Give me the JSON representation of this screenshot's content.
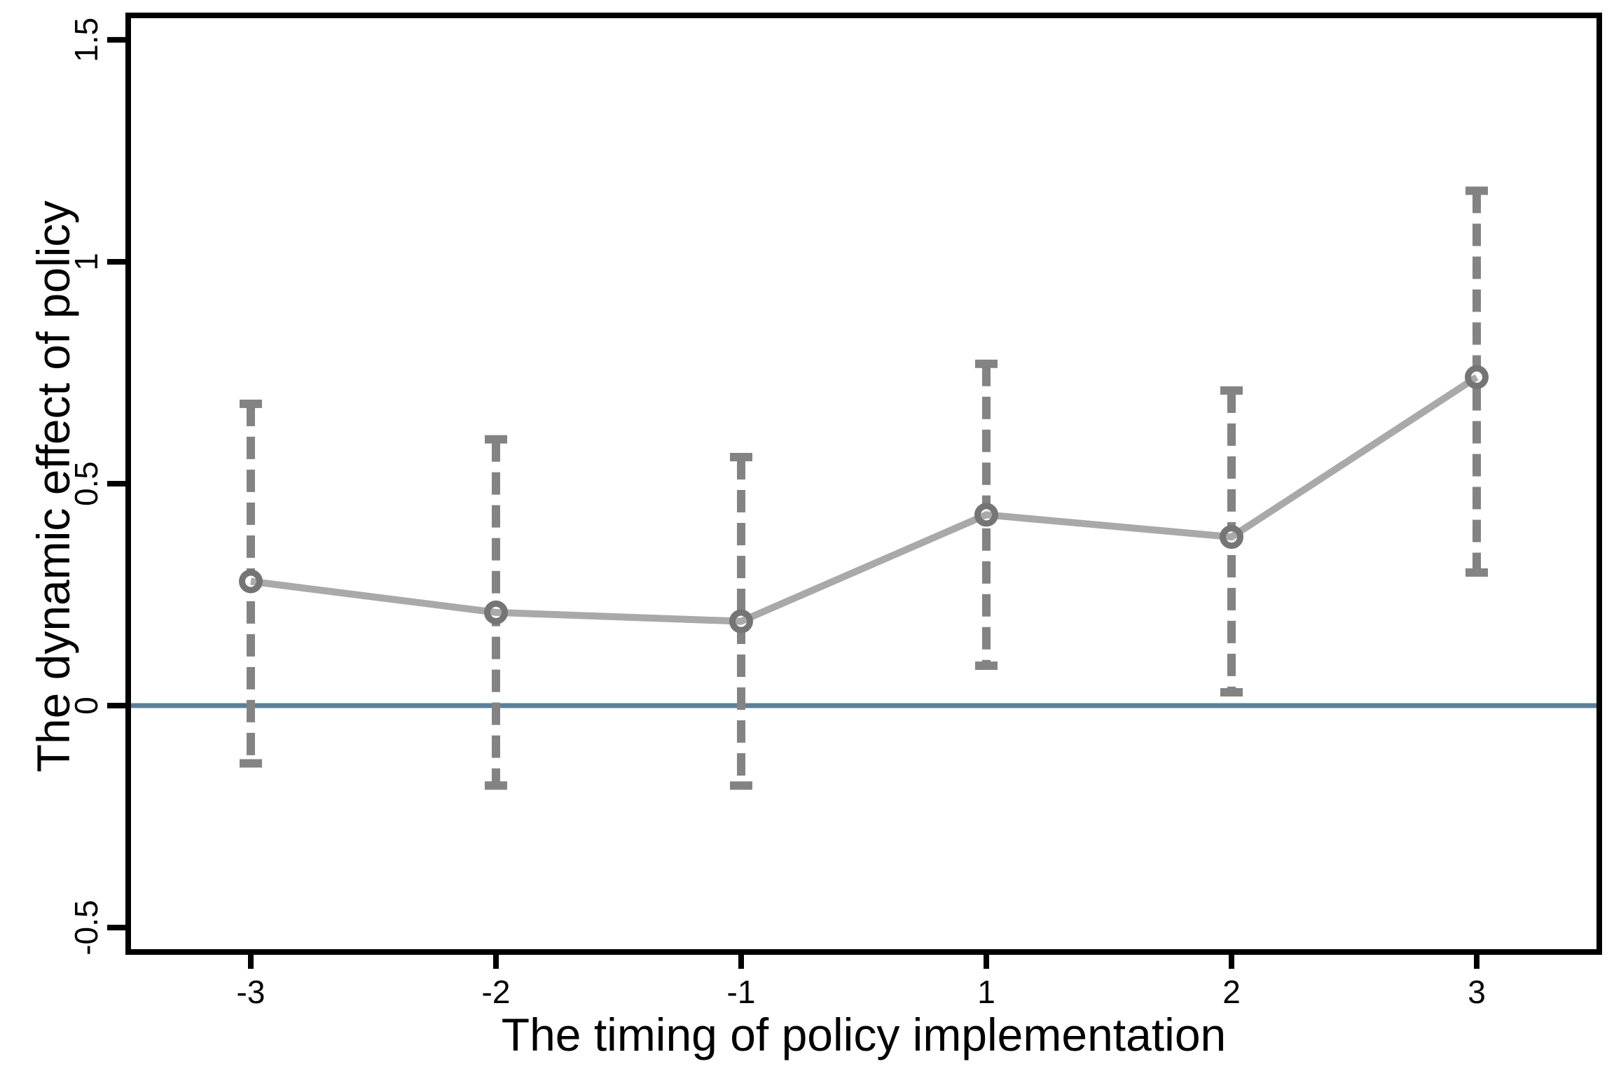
{
  "chart_data": {
    "type": "line",
    "title": "",
    "xlabel": "The timing of policy implementation",
    "ylabel": "The dynamic effect of policy",
    "x_categories": [
      "-3",
      "-2",
      "-1",
      "1",
      "2",
      "3"
    ],
    "series": [
      {
        "name": "point_estimate",
        "values": [
          0.28,
          0.21,
          0.19,
          0.43,
          0.38,
          0.74
        ]
      },
      {
        "name": "ci_lower",
        "values": [
          -0.13,
          -0.18,
          -0.18,
          0.09,
          0.03,
          0.3
        ]
      },
      {
        "name": "ci_upper",
        "values": [
          0.68,
          0.6,
          0.56,
          0.77,
          0.71,
          1.16
        ]
      }
    ],
    "ylim": [
      -0.555,
      1.555
    ],
    "yticks": {
      "values": [
        -0.5,
        0,
        0.5,
        1,
        1.5
      ],
      "labels": [
        "-0.5",
        "0",
        "0.5",
        "1",
        "1.5"
      ]
    },
    "zero_reference_line": 0,
    "grid": false,
    "legend": "none",
    "marker_style": "hollow-circle",
    "error_bar_style": "dashed-with-caps",
    "colors": {
      "estimate_line": "#a9a9a9",
      "marker": "#757575",
      "error_bar": "#838383",
      "zero_line": "#5b7f99",
      "axis": "#000000",
      "background": "#ffffff"
    }
  }
}
